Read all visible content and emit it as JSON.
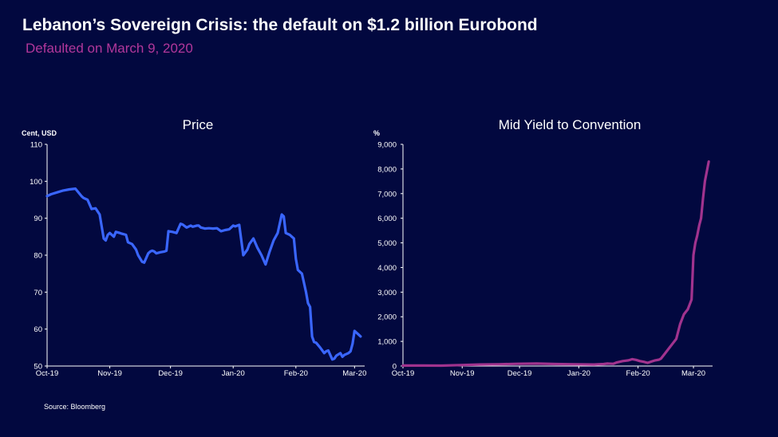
{
  "header": {
    "title": "Lebanon’s Sovereign Crisis: the default on $1.2 billion Eurobond",
    "subtitle": "Defaulted on March 9, 2020"
  },
  "footer": {
    "source": "Source: Bloomberg"
  },
  "colors": {
    "background": "#02083f",
    "price_line": "#3a66ff",
    "yield_line": "#a1338e",
    "subtitle": "#b2379b",
    "axis": "#ffffff"
  },
  "chart_data": [
    {
      "type": "line",
      "title": "Price",
      "ylabel": "Cent, USD",
      "xlabel": "",
      "ylim": [
        50,
        110
      ],
      "xlim": [
        0,
        157
      ],
      "yticks": [
        50,
        60,
        70,
        80,
        90,
        100,
        110
      ],
      "ytick_labels": [
        "50",
        "60",
        "70",
        "80",
        "90",
        "100",
        "110"
      ],
      "xticks": [
        0,
        31,
        61,
        92,
        123,
        152
      ],
      "xtick_labels": [
        "Oct-19",
        "Nov-19",
        "Dec-19",
        "Jan-20",
        "Feb-20",
        "Mar-20"
      ],
      "series": [
        {
          "name": "Price",
          "x": [
            0,
            2,
            5,
            8,
            11,
            14,
            17,
            18,
            20,
            22,
            24,
            26,
            28,
            29,
            30,
            31,
            33,
            34,
            36,
            37,
            39,
            40,
            42,
            44,
            45,
            47,
            48,
            50,
            51,
            52,
            53,
            54,
            56,
            58,
            59,
            60,
            62,
            64,
            66,
            67,
            69,
            71,
            72,
            74,
            75,
            76,
            78,
            80,
            82,
            84,
            86,
            88,
            90,
            92,
            93,
            95,
            97,
            99,
            100,
            102,
            104,
            106,
            108,
            110,
            112,
            114,
            116,
            117,
            118,
            120,
            121,
            122,
            123,
            124,
            126,
            128,
            129,
            130,
            131,
            132,
            133,
            135,
            137,
            138,
            139,
            141,
            142,
            143,
            145,
            146,
            147,
            149,
            150,
            151,
            152,
            153,
            154,
            155
          ],
          "values": [
            96,
            96.5,
            97,
            97.5,
            97.8,
            98,
            96,
            95.5,
            95,
            92.5,
            92.7,
            91,
            84.5,
            84,
            85.5,
            86,
            85,
            86.3,
            86,
            85.8,
            85.5,
            83.5,
            83,
            81.5,
            80,
            78.2,
            78,
            80.5,
            81,
            81.2,
            81,
            80.5,
            80.8,
            81,
            81.2,
            86.5,
            86.3,
            86,
            88.5,
            88.3,
            87.5,
            88,
            87.7,
            88,
            88,
            87.5,
            87.2,
            87.3,
            87.2,
            87.3,
            86.5,
            86.8,
            87,
            88,
            87.8,
            88.2,
            80,
            81.5,
            83,
            84.5,
            82,
            80,
            77.5,
            81,
            84,
            86,
            91,
            90.5,
            86,
            85.5,
            85,
            84.5,
            79,
            76,
            75,
            70,
            67,
            66,
            58,
            56.5,
            56.3,
            55,
            53.5,
            54,
            54.2,
            51.8,
            52,
            52.8,
            53.5,
            52.5,
            53,
            53.5,
            54,
            56,
            59.5,
            59,
            58.5,
            58
          ]
        }
      ]
    },
    {
      "type": "line",
      "title": "Mid Yield to Convention",
      "ylabel": "%",
      "xlabel": "",
      "ylim": [
        0,
        9000
      ],
      "xlim": [
        0,
        162
      ],
      "yticks": [
        0,
        1000,
        2000,
        3000,
        4000,
        5000,
        6000,
        7000,
        8000,
        9000
      ],
      "ytick_labels": [
        "0",
        "1,000",
        "2,000",
        "3,000",
        "4,000",
        "5,000",
        "6,000",
        "7,000",
        "8,000",
        "9,000"
      ],
      "xticks": [
        0,
        31,
        61,
        92,
        123,
        152
      ],
      "xtick_labels": [
        "Oct-19",
        "Nov-19",
        "Dec-19",
        "Jan-20",
        "Feb-20",
        "Mar-20"
      ],
      "series": [
        {
          "name": "Yield",
          "x": [
            0,
            10,
            20,
            30,
            40,
            50,
            60,
            70,
            80,
            90,
            100,
            105,
            107,
            110,
            112,
            115,
            118,
            120,
            122,
            124,
            126,
            128,
            130,
            132,
            134,
            135,
            137,
            139,
            141,
            143,
            144,
            145,
            146,
            147,
            148,
            149,
            150,
            151,
            152,
            153,
            154,
            155,
            156,
            157,
            158,
            159,
            160
          ],
          "values": [
            20,
            20,
            15,
            40,
            60,
            70,
            90,
            100,
            80,
            70,
            60,
            80,
            100,
            90,
            150,
            200,
            230,
            280,
            250,
            200,
            170,
            130,
            180,
            230,
            260,
            300,
            500,
            700,
            900,
            1100,
            1400,
            1700,
            1900,
            2100,
            2200,
            2300,
            2500,
            2700,
            4500,
            5000,
            5300,
            5700,
            6000,
            6800,
            7500,
            7900,
            8300
          ]
        }
      ]
    }
  ]
}
